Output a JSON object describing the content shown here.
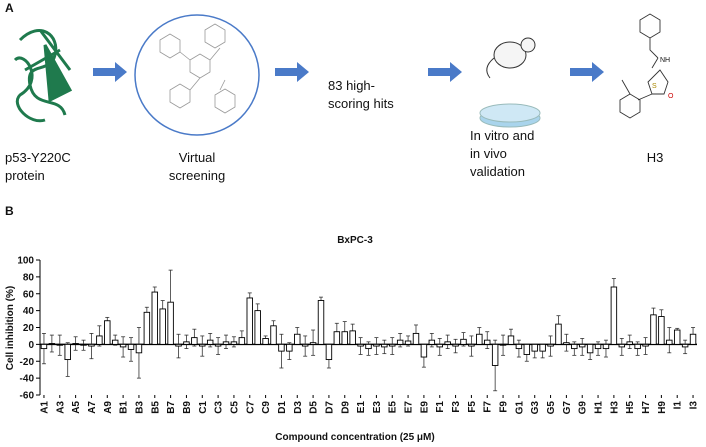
{
  "panel_a": {
    "label": "A",
    "steps": [
      {
        "lines": [
          "p53-Y220C",
          "protein"
        ]
      },
      {
        "lines": [
          "Virtual",
          "screening"
        ]
      },
      {
        "lines": [
          "83 high-",
          "scoring hits"
        ]
      },
      {
        "lines": [
          "In vitro and",
          "in vivo",
          "validation"
        ]
      },
      {
        "lines": [
          "H3"
        ]
      }
    ]
  },
  "panel_b": {
    "label": "B"
  },
  "chart_data": {
    "type": "bar",
    "title": "BxPC-3",
    "x_label": "Compound concentration (25 μM)",
    "y_label": "Cell inhibition (%)",
    "categories": [
      "A1",
      null,
      "A3",
      null,
      "A5",
      null,
      "A7",
      null,
      "A9",
      null,
      "B1",
      null,
      "B3",
      null,
      "B5",
      null,
      "B7",
      null,
      "B9",
      null,
      "C1",
      null,
      "C3",
      null,
      "C5",
      null,
      "C7",
      null,
      "C9",
      null,
      "D1",
      null,
      "D3",
      null,
      "D5",
      null,
      "D7",
      null,
      "D9",
      null,
      "E1",
      null,
      "E3",
      null,
      "E5",
      null,
      "E7",
      null,
      "E9",
      null,
      "F1",
      null,
      "F3",
      null,
      "F5",
      null,
      "F7",
      null,
      "F9",
      null,
      "G1",
      null,
      "G3",
      null,
      "G5",
      null,
      "G7",
      null,
      "G9",
      null,
      "H1",
      null,
      "H3",
      null,
      "H5",
      null,
      "H7",
      null,
      "H9",
      null,
      "I1",
      null,
      "I3"
    ],
    "values": [
      -5,
      1,
      -1,
      -18,
      1,
      -1,
      -2,
      10,
      28,
      5,
      -3,
      -6,
      -10,
      38,
      62,
      42,
      50,
      -2,
      3,
      8,
      -2,
      5,
      -2,
      3,
      3,
      8,
      55,
      40,
      7,
      22,
      -8,
      -8,
      12,
      -2,
      2,
      52,
      -18,
      15,
      15,
      16,
      -2,
      -5,
      -2,
      -3,
      -2,
      5,
      4,
      13,
      -15,
      5,
      -3,
      3,
      -2,
      6,
      -2,
      12,
      5,
      -25,
      -1,
      10,
      -5,
      -12,
      -8,
      -8,
      -2,
      24,
      2,
      -5,
      -3,
      -10,
      -5,
      -5,
      68,
      -3,
      3,
      -5,
      -2,
      35,
      33,
      5,
      17,
      -3,
      12
    ],
    "errors": [
      18,
      10,
      12,
      20,
      8,
      6,
      15,
      12,
      4,
      6,
      12,
      14,
      30,
      6,
      6,
      10,
      38,
      14,
      8,
      10,
      12,
      8,
      10,
      8,
      6,
      8,
      6,
      8,
      3,
      6,
      20,
      10,
      8,
      12,
      15,
      4,
      10,
      10,
      12,
      8,
      10,
      8,
      10,
      8,
      10,
      8,
      6,
      10,
      12,
      8,
      10,
      8,
      8,
      8,
      12,
      8,
      10,
      30,
      12,
      8,
      10,
      8,
      8,
      8,
      12,
      10,
      10,
      8,
      10,
      8,
      8,
      10,
      10,
      10,
      8,
      8,
      10,
      8,
      8,
      15,
      2,
      8,
      8
    ],
    "color": "#ffffff",
    "ylim": [
      -60,
      100
    ],
    "yticks": [
      -60,
      -40,
      -20,
      0,
      20,
      40,
      60,
      80,
      100
    ],
    "grid": false
  }
}
